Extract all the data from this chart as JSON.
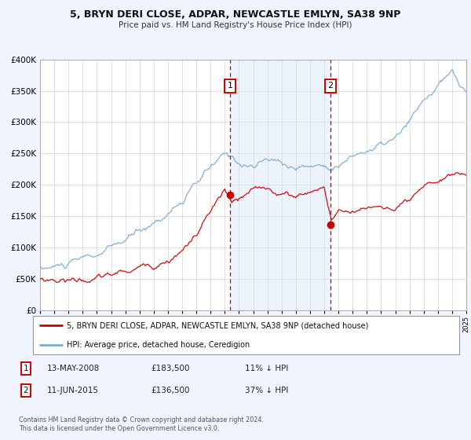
{
  "title": "5, BRYN DERI CLOSE, ADPAR, NEWCASTLE EMLYN, SA38 9NP",
  "subtitle": "Price paid vs. HM Land Registry's House Price Index (HPI)",
  "legend_label_red": "5, BRYN DERI CLOSE, ADPAR, NEWCASTLE EMLYN, SA38 9NP (detached house)",
  "legend_label_blue": "HPI: Average price, detached house, Ceredigion",
  "sale1_date": "13-MAY-2008",
  "sale1_price": "£183,500",
  "sale1_hpi": "11% ↓ HPI",
  "sale2_date": "11-JUN-2015",
  "sale2_price": "£136,500",
  "sale2_hpi": "37% ↓ HPI",
  "footer1": "Contains HM Land Registry data © Crown copyright and database right 2024.",
  "footer2": "This data is licensed under the Open Government Licence v3.0.",
  "sale1_year": 2008.37,
  "sale1_value": 183500,
  "sale2_year": 2015.44,
  "sale2_value": 136500,
  "ylim": [
    0,
    400000
  ],
  "xlim_start": 1995,
  "xlim_end": 2025,
  "background_color": "#f0f4ff",
  "plot_bg_color": "#ffffff",
  "red_color": "#cc0000",
  "blue_color": "#7aadd4",
  "shade_color": "#ccddf5",
  "grid_color": "#cccccc"
}
